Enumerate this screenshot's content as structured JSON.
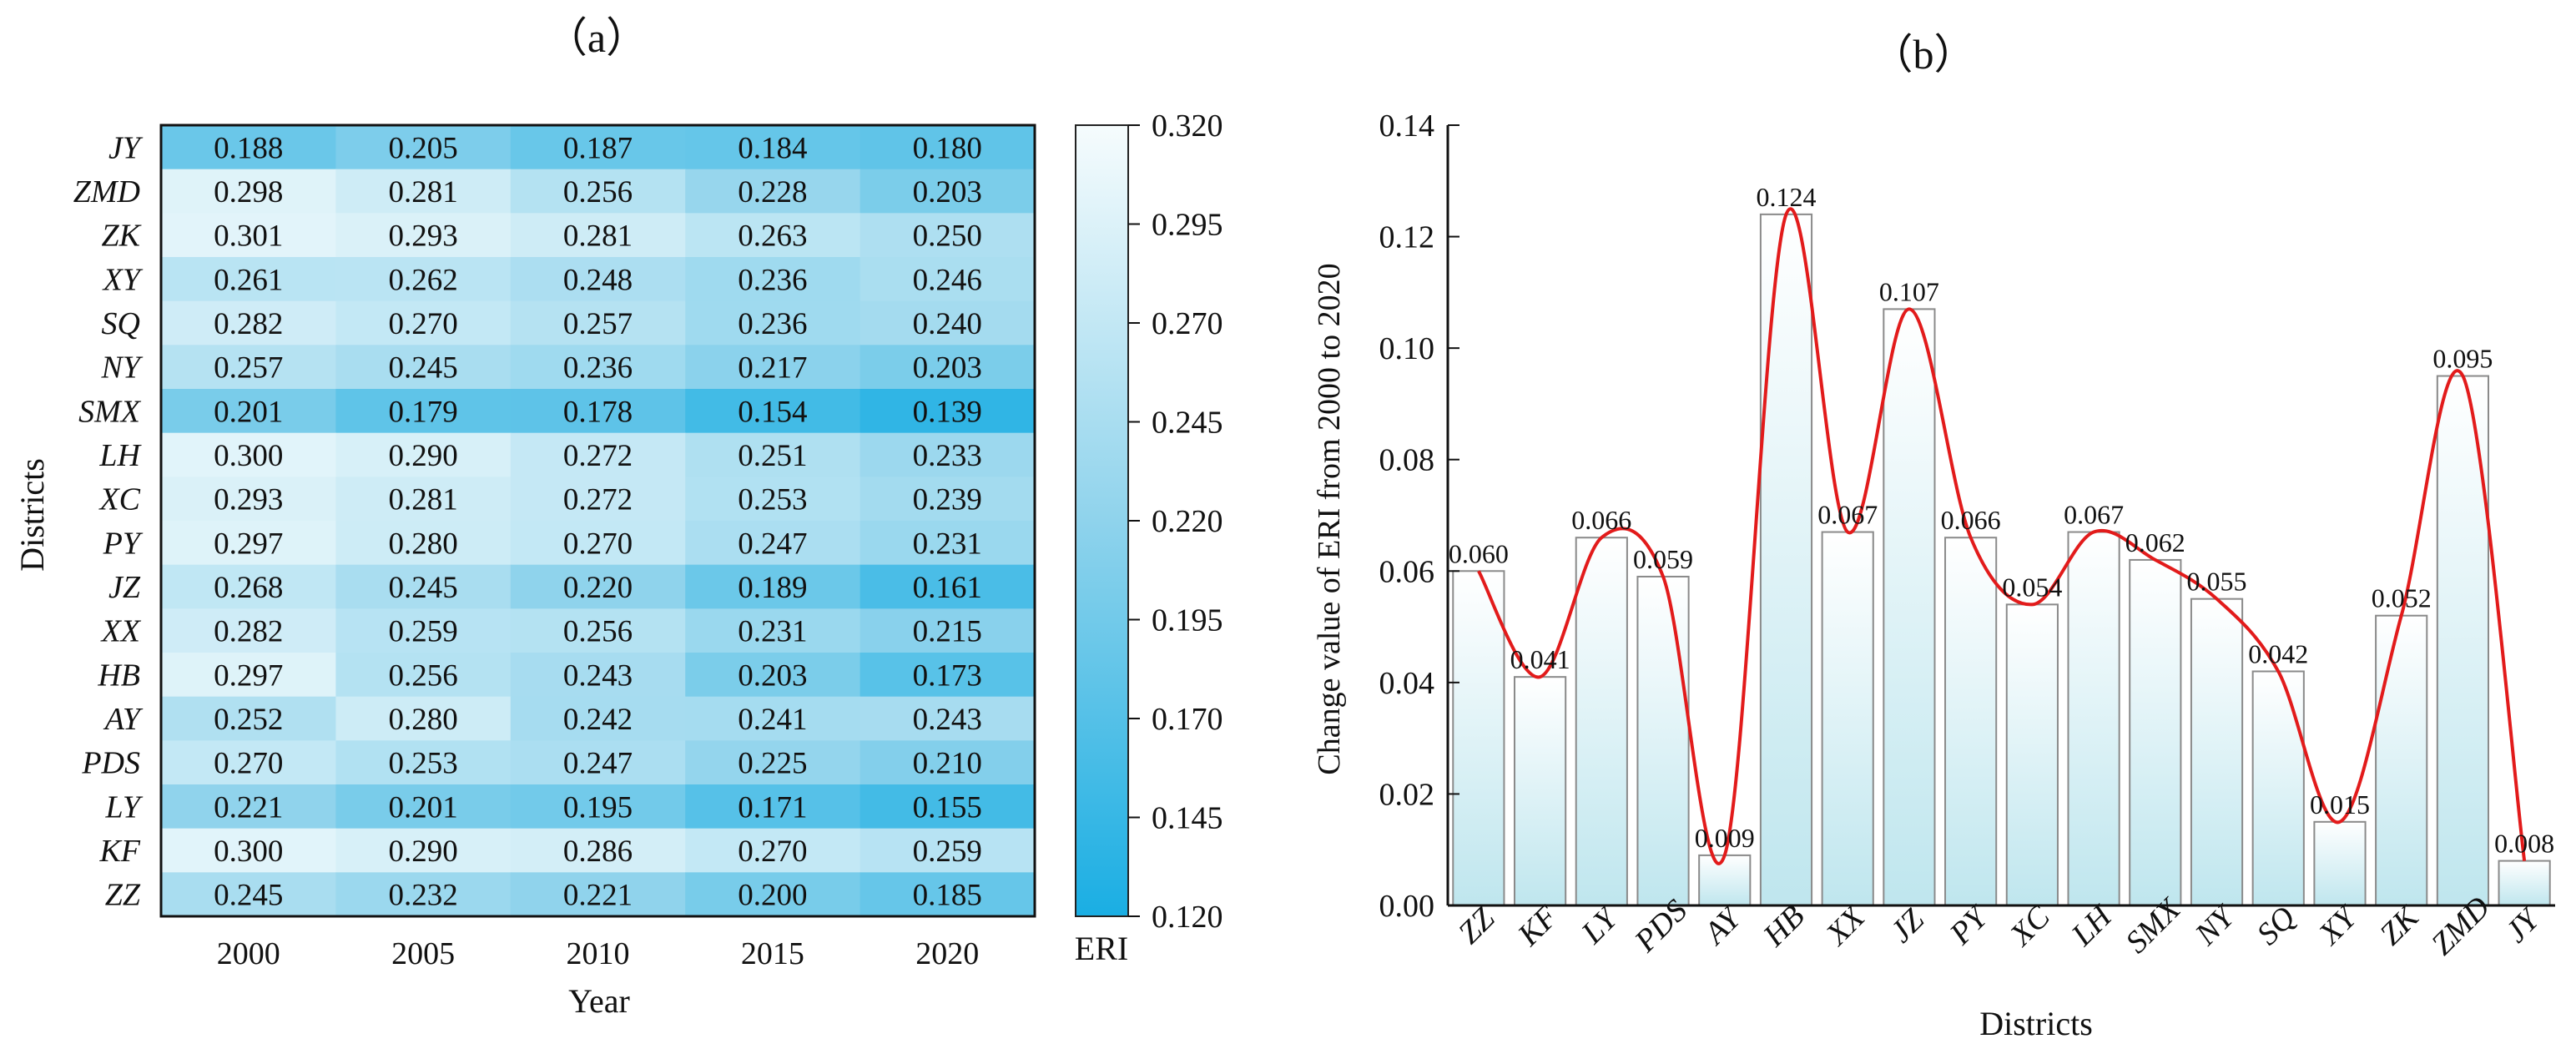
{
  "panel_a": {
    "label": "（a）"
  },
  "panel_b": {
    "label": "（b）"
  },
  "colors": {
    "low": "#1aaee3",
    "high": "#f6fcfd",
    "curve": "#e21b1b",
    "bar_stroke": "#8a8a8a",
    "axis": "#111111"
  },
  "chart_data": [
    {
      "type": "heatmap",
      "title": "（a）",
      "xlabel": "Year",
      "ylabel": "Districts",
      "x": [
        "2000",
        "2005",
        "2010",
        "2015",
        "2020"
      ],
      "y": [
        "JY",
        "ZMD",
        "ZK",
        "XY",
        "SQ",
        "NY",
        "SMX",
        "LH",
        "XC",
        "PY",
        "JZ",
        "XX",
        "HB",
        "AY",
        "PDS",
        "LY",
        "KF",
        "ZZ"
      ],
      "values": [
        [
          0.188,
          0.205,
          0.187,
          0.184,
          0.18
        ],
        [
          0.298,
          0.281,
          0.256,
          0.228,
          0.203
        ],
        [
          0.301,
          0.293,
          0.281,
          0.263,
          0.25
        ],
        [
          0.261,
          0.262,
          0.248,
          0.236,
          0.246
        ],
        [
          0.282,
          0.27,
          0.257,
          0.236,
          0.24
        ],
        [
          0.257,
          0.245,
          0.236,
          0.217,
          0.203
        ],
        [
          0.201,
          0.179,
          0.178,
          0.154,
          0.139
        ],
        [
          0.3,
          0.29,
          0.272,
          0.251,
          0.233
        ],
        [
          0.293,
          0.281,
          0.272,
          0.253,
          0.239
        ],
        [
          0.297,
          0.28,
          0.27,
          0.247,
          0.231
        ],
        [
          0.268,
          0.245,
          0.22,
          0.189,
          0.161
        ],
        [
          0.282,
          0.259,
          0.256,
          0.231,
          0.215
        ],
        [
          0.297,
          0.256,
          0.243,
          0.203,
          0.173
        ],
        [
          0.252,
          0.28,
          0.242,
          0.241,
          0.243
        ],
        [
          0.27,
          0.253,
          0.247,
          0.225,
          0.21
        ],
        [
          0.221,
          0.201,
          0.195,
          0.171,
          0.155
        ],
        [
          0.3,
          0.29,
          0.286,
          0.27,
          0.259
        ],
        [
          0.245,
          0.232,
          0.221,
          0.2,
          0.185
        ]
      ],
      "colorbar": {
        "label": "ERI",
        "range": [
          0.12,
          0.32
        ],
        "ticks": [
          "0.320",
          "0.295",
          "0.270",
          "0.245",
          "0.220",
          "0.195",
          "0.170",
          "0.145",
          "0.120"
        ]
      }
    },
    {
      "type": "bar",
      "title": "（b）",
      "xlabel": "Districts",
      "ylabel": "Change value of ERI from 2000 to 2020",
      "categories": [
        "ZZ",
        "KF",
        "LY",
        "PDS",
        "AY",
        "HB",
        "XX",
        "JZ",
        "PY",
        "XC",
        "LH",
        "SMX",
        "NY",
        "SQ",
        "XY",
        "ZK",
        "ZMD",
        "JY"
      ],
      "values": [
        0.06,
        0.041,
        0.066,
        0.059,
        0.009,
        0.124,
        0.067,
        0.107,
        0.066,
        0.054,
        0.067,
        0.062,
        0.055,
        0.042,
        0.015,
        0.052,
        0.095,
        0.008
      ],
      "labels": [
        "0.060",
        "0.041",
        "0.066",
        "0.059",
        "0.009",
        "0.124",
        "0.067",
        "0.107",
        "0.066",
        "0.054",
        "0.067",
        "0.062",
        "0.055",
        "0.042",
        "0.015",
        "0.052",
        "0.095",
        "0.008"
      ],
      "ylim": [
        0,
        0.14
      ],
      "yticks": [
        "0.00",
        "0.02",
        "0.04",
        "0.06",
        "0.08",
        "0.10",
        "0.12",
        "0.14"
      ],
      "overlay": "smoothed line"
    }
  ]
}
